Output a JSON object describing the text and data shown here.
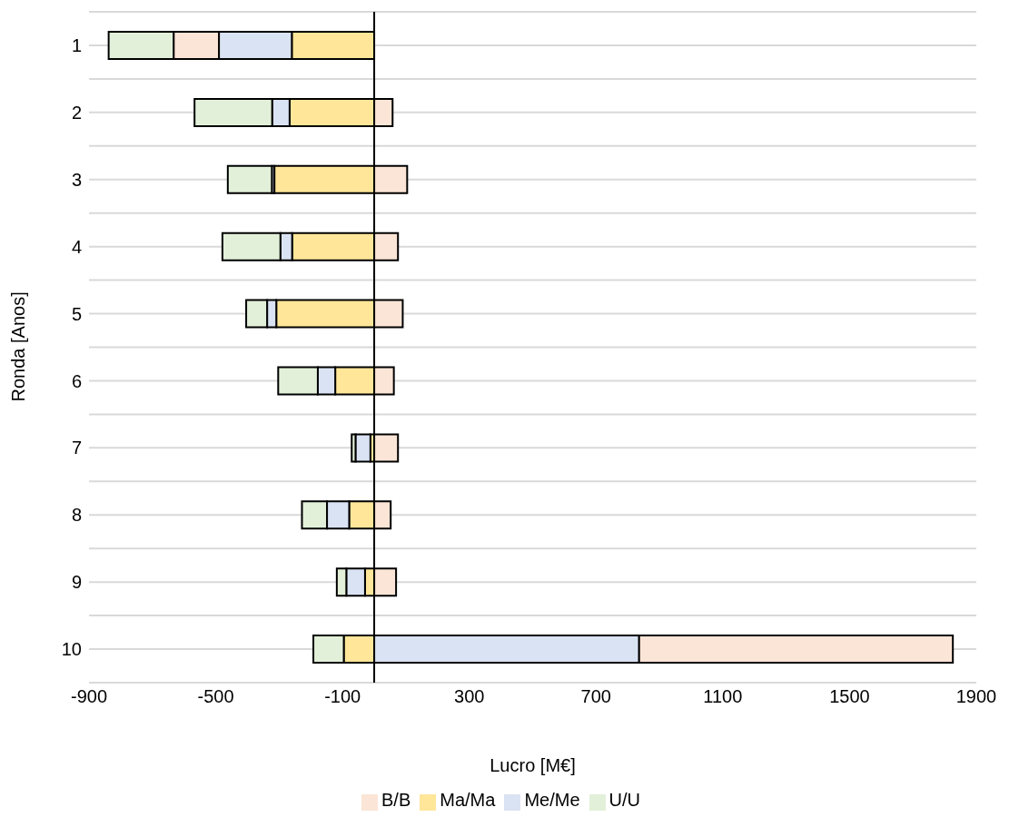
{
  "chart_data": {
    "type": "bar",
    "orientation": "horizontal",
    "stacked": true,
    "xlabel": "Lucro [M€]",
    "ylabel": "Ronda [Anos]",
    "categories": [
      "1",
      "2",
      "3",
      "4",
      "5",
      "6",
      "7",
      "8",
      "9",
      "10"
    ],
    "series": [
      {
        "name": "Ma/Ma",
        "color": "#ffe699",
        "values": [
          -260,
          -267,
          -315,
          -259,
          -309,
          -123,
          -12,
          -79,
          -29,
          -96
        ]
      },
      {
        "name": "Me/Me",
        "color": "#dae3f3",
        "values": [
          -230,
          -55,
          -8,
          -37,
          -29,
          -55,
          -47,
          -70,
          -59,
          836
        ]
      },
      {
        "name": "B/B",
        "color": "#fbe5d6",
        "values": [
          -143,
          58,
          104,
          75,
          90,
          62,
          75,
          52,
          69,
          990
        ]
      },
      {
        "name": "U/U",
        "color": "#e2f0d9",
        "values": [
          -205,
          -245,
          -139,
          -183,
          -66,
          -125,
          -12,
          -79,
          -30,
          -96
        ]
      }
    ],
    "xlim": [
      -900,
      1900
    ],
    "xticks": [
      -900,
      -500,
      -100,
      300,
      700,
      1100,
      1500,
      1900
    ],
    "grid": "y",
    "legend": "bottom"
  }
}
